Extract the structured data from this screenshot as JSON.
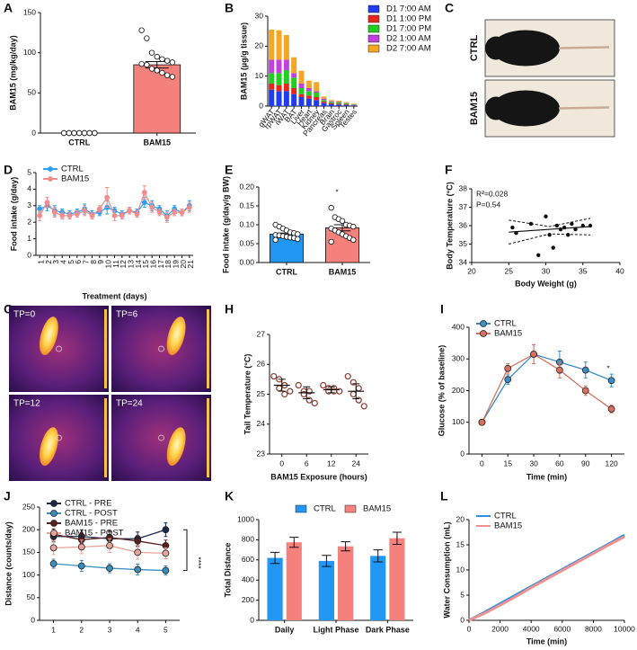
{
  "chart_data": [
    {
      "panel": "A",
      "type": "bar",
      "ylabel": "BAM15 (mg/kg/day)",
      "categories": [
        "CTRL",
        "BAM15"
      ],
      "values": [
        0,
        85
      ],
      "errors": [
        0,
        4
      ],
      "colors": [
        "#ffffff",
        "#f4817c"
      ],
      "points": [
        [
          0,
          0,
          0,
          0,
          0,
          0,
          0,
          0,
          0,
          0,
          0,
          0,
          0,
          0
        ],
        [
          128,
          118,
          100,
          95,
          92,
          90,
          88,
          86,
          85,
          80,
          78,
          75,
          72,
          70
        ]
      ],
      "ylim": [
        0,
        150
      ],
      "yticks": [
        0,
        50,
        100,
        150
      ]
    },
    {
      "panel": "B",
      "type": "stacked",
      "ylabel": "BAM15 (µg/g tissue)",
      "categories": [
        "gWAT",
        "rpWAT",
        "iWAT",
        "BAT",
        "Liver",
        "Heart",
        "Kidney",
        "Pancreas",
        "Brain",
        "Gastroc",
        "Spleen",
        "Testes"
      ],
      "series": [
        {
          "name": "D1 7:00 AM",
          "color": "#1f3cf0",
          "values": [
            5.5,
            5,
            5,
            4,
            3,
            2.5,
            2,
            1,
            0.6,
            0.5,
            0.4,
            0.2
          ]
        },
        {
          "name": "D1 1:00 PM",
          "color": "#e8251c",
          "values": [
            2,
            2,
            2.5,
            2,
            1,
            1,
            1,
            0.5,
            0.3,
            0.3,
            0.2,
            0.1
          ]
        },
        {
          "name": "D1 7:00 PM",
          "color": "#1fcf1f",
          "values": [
            3.5,
            4,
            4.5,
            3.5,
            2,
            1.5,
            1.5,
            0.5,
            0.4,
            0.4,
            0.3,
            0.2
          ]
        },
        {
          "name": "D2 1:00 AM",
          "color": "#c040e0",
          "values": [
            4.5,
            4.5,
            3.5,
            1.5,
            1.5,
            1,
            0.5,
            0.5,
            0.3,
            0.2,
            0.1,
            0.1
          ]
        },
        {
          "name": "D2 7:00 AM",
          "color": "#f5a623",
          "values": [
            10,
            9.8,
            8.2,
            5.3,
            4.3,
            2.5,
            3,
            0.7,
            0.4,
            0.4,
            0.3,
            0.2
          ]
        }
      ],
      "legend": "right",
      "ylim": [
        0,
        30
      ],
      "yticks": [
        0,
        10,
        20,
        30
      ]
    },
    {
      "panel": "C",
      "type": "image",
      "labels": [
        "CTRL",
        "BAM15"
      ]
    },
    {
      "panel": "D",
      "type": "line",
      "xlabel": "Treatment (days)",
      "ylabel": "Food intake (g/day)",
      "categories": [
        "1",
        "2",
        "3",
        "4",
        "5",
        "6",
        "7",
        "8",
        "9",
        "10",
        "11",
        "12",
        "13",
        "14",
        "15",
        "16",
        "17",
        "18",
        "19",
        "20",
        "21"
      ],
      "series": [
        {
          "name": "CTRL",
          "color": "#2a9df4",
          "values": [
            2.8,
            3.0,
            2.7,
            2.6,
            2.5,
            2.6,
            2.8,
            2.5,
            2.6,
            2.9,
            2.7,
            2.5,
            2.7,
            2.6,
            3.2,
            3.0,
            2.8,
            2.4,
            2.8,
            2.6,
            3.0
          ],
          "errors": [
            0.2,
            0.3,
            0.3,
            0.2,
            0.2,
            0.2,
            0.3,
            0.2,
            0.2,
            0.4,
            0.2,
            0.2,
            0.2,
            0.2,
            0.3,
            0.3,
            0.2,
            0.3,
            0.2,
            0.2,
            0.3
          ]
        },
        {
          "name": "BAM15",
          "color": "#f08c8c",
          "values": [
            2.4,
            3.2,
            2.6,
            2.4,
            2.4,
            2.5,
            2.7,
            2.4,
            2.8,
            3.5,
            2.4,
            2.4,
            2.7,
            2.5,
            3.8,
            2.9,
            2.6,
            2.3,
            2.6,
            2.6,
            2.9
          ],
          "errors": [
            0.3,
            0.3,
            0.3,
            0.2,
            0.2,
            0.2,
            0.3,
            0.2,
            0.2,
            0.6,
            0.3,
            0.2,
            0.2,
            0.2,
            0.4,
            0.3,
            0.2,
            0.3,
            0.2,
            0.2,
            0.3
          ]
        }
      ],
      "legend": "upper left",
      "ylim": [
        0,
        5
      ],
      "yticks": [
        0,
        1,
        2,
        3,
        4,
        5
      ]
    },
    {
      "panel": "E",
      "type": "bar",
      "ylabel": "Food intake (g/day/g BW)",
      "categories": [
        "CTRL",
        "BAM15"
      ],
      "values": [
        0.075,
        0.092
      ],
      "errors": [
        0.003,
        0.008
      ],
      "colors": [
        "#2196f3",
        "#f4817c"
      ],
      "points": [
        [
          0.1,
          0.095,
          0.09,
          0.085,
          0.08,
          0.078,
          0.075,
          0.073,
          0.072,
          0.07,
          0.068,
          0.066,
          0.065,
          0.062,
          0.06
        ],
        [
          0.145,
          0.12,
          0.115,
          0.11,
          0.1,
          0.098,
          0.095,
          0.09,
          0.085,
          0.08,
          0.075,
          0.07,
          0.065,
          0.06,
          0.055
        ]
      ],
      "annotations": [
        "*"
      ],
      "ylim": [
        0,
        0.2
      ],
      "yticks": [
        {
          "value": 0,
          "label": "0.00"
        },
        0.05,
        {
          "value": 0.1,
          "label": "0.10"
        },
        0.15,
        {
          "value": 0.2,
          "label": "0.20"
        }
      ]
    },
    {
      "panel": "F",
      "type": "scatter",
      "xlabel": "Body Weight (g)",
      "ylabel": "Body Temperature (°C)",
      "x": [
        25.5,
        26,
        28,
        29,
        30,
        30.5,
        31,
        31.5,
        32,
        32.5,
        33,
        33.5,
        34,
        35,
        36
      ],
      "y": [
        35.9,
        35.6,
        36.1,
        34.4,
        36.5,
        35.5,
        34.8,
        36,
        35.8,
        35.9,
        35.5,
        36.1,
        35.8,
        36,
        36
      ],
      "fit": {
        "x": [
          25,
          36
        ],
        "y": [
          35.65,
          35.95
        ]
      },
      "ci_x": [
        25,
        30.5,
        36
      ],
      "ci_upper": [
        36.3,
        35.95,
        36.4
      ],
      "ci_lower": [
        35.0,
        35.55,
        35.5
      ],
      "annotations": [
        "R²=0.028",
        "P=0.54"
      ],
      "xlim": [
        20,
        40
      ],
      "xticks": [
        20,
        25,
        30,
        35,
        40
      ],
      "ylim": [
        34,
        38
      ],
      "yticks": [
        34,
        35,
        36,
        37,
        38
      ]
    },
    {
      "panel": "G",
      "type": "image",
      "labels": [
        "TP=0",
        "TP=6",
        "TP=12",
        "TP=24"
      ]
    },
    {
      "panel": "H",
      "type": "dot",
      "xlabel": "BAM15 Exposure (hours)",
      "ylabel": "Tail Temperature (°C)",
      "categories": [
        "0",
        "6",
        "12",
        "24"
      ],
      "values": [
        25.3,
        25.05,
        25.15,
        25.1
      ],
      "errors": [
        0.2,
        0.2,
        0.1,
        0.25
      ],
      "points": [
        [
          25.6,
          25.5,
          25.3,
          25.2,
          25.0,
          25.1
        ],
        [
          25.3,
          25.1,
          25.1,
          25.0,
          24.8,
          24.7
        ],
        [
          25.3,
          25.2,
          25.2,
          25.1,
          25.1,
          25.1
        ],
        [
          25.6,
          25.4,
          25.2,
          25.0,
          24.8,
          24.6
        ]
      ],
      "color": "#8b3a2e",
      "ylim": [
        23,
        27
      ],
      "yticks": [
        23,
        24,
        25,
        26,
        27
      ]
    },
    {
      "panel": "I",
      "type": "line",
      "xlabel": "Time (min)",
      "ylabel": "Glucose (% of baseline)",
      "categories": [
        "0",
        "15",
        "30",
        "60",
        "90",
        "120"
      ],
      "series": [
        {
          "name": "CTRL",
          "color": "#3c8dc4",
          "values": [
            100,
            235,
            315,
            290,
            265,
            232
          ],
          "errors": [
            5,
            15,
            30,
            35,
            25,
            20
          ]
        },
        {
          "name": "BAM15",
          "color": "#d9705f",
          "values": [
            100,
            270,
            315,
            265,
            200,
            142
          ],
          "errors": [
            5,
            15,
            30,
            25,
            15,
            12
          ]
        }
      ],
      "annotations": [
        "*"
      ],
      "legend": "upper left",
      "ylim": [
        0,
        400
      ],
      "yticks": [
        0,
        100,
        200,
        300,
        400
      ]
    },
    {
      "panel": "J",
      "type": "line",
      "ylabel": "Distance (counts/day)",
      "categories": [
        "1",
        "2",
        "3",
        "4",
        "5"
      ],
      "series": [
        {
          "name": "CTRL - PRE",
          "color": "#1b2a4a",
          "values": [
            185,
            185,
            180,
            180,
            200
          ],
          "errors": [
            12,
            15,
            15,
            15,
            15
          ]
        },
        {
          "name": "CTRL - POST",
          "color": "#3a8fbf",
          "values": [
            125,
            120,
            115,
            112,
            110
          ],
          "errors": [
            10,
            12,
            10,
            12,
            10
          ]
        },
        {
          "name": "BAM15 - PRE",
          "color": "#5a1f1f",
          "values": [
            190,
            178,
            183,
            175,
            165
          ],
          "errors": [
            12,
            15,
            15,
            12,
            12
          ]
        },
        {
          "name": "BAM15 - POST",
          "color": "#e8a39a",
          "values": [
            160,
            162,
            165,
            150,
            148
          ],
          "errors": [
            15,
            15,
            15,
            15,
            12
          ]
        }
      ],
      "annotations": [
        "****"
      ],
      "legend": "upper left",
      "ylim": [
        0,
        250
      ],
      "yticks": [
        0,
        50,
        100,
        150,
        200,
        250
      ]
    },
    {
      "panel": "K",
      "type": "grouped",
      "ylabel": "Total Distance",
      "categories": [
        "Daily",
        "Light Phase",
        "Dark Phase"
      ],
      "series": [
        {
          "name": "CTRL",
          "color": "#2196f3",
          "values": [
            620,
            590,
            640
          ],
          "errors": [
            55,
            55,
            60
          ]
        },
        {
          "name": "BAM15",
          "color": "#f4817c",
          "values": [
            775,
            735,
            815
          ],
          "errors": [
            50,
            45,
            60
          ]
        }
      ],
      "legend": "upper center",
      "ylim": [
        0,
        1000
      ],
      "yticks": [
        0,
        200,
        400,
        600,
        800,
        1000
      ]
    },
    {
      "panel": "L",
      "type": "line",
      "xlabel": "Time (min)",
      "ylabel": "Water Consumption (mL)",
      "x": [
        0,
        1000,
        2000,
        3000,
        4000,
        5000,
        6000,
        7000,
        8000,
        9000,
        10000
      ],
      "series": [
        {
          "name": "CTRL",
          "color": "#2b8fe0",
          "values": [
            0,
            1.6,
            3.3,
            5,
            6.7,
            8.4,
            10.1,
            11.8,
            13.5,
            15.2,
            16.9
          ]
        },
        {
          "name": "BAM15",
          "color": "#f09090",
          "values": [
            0,
            1.4,
            3.0,
            4.7,
            6.5,
            8.2,
            9.9,
            11.6,
            13.3,
            15.0,
            16.6
          ]
        }
      ],
      "legend": "upper left",
      "xlim": [
        0,
        10000
      ],
      "xticks": [
        0,
        2000,
        4000,
        6000,
        8000,
        10000
      ],
      "ylim": [
        0,
        20
      ],
      "yticks": [
        0,
        5,
        10,
        15,
        20
      ]
    }
  ]
}
